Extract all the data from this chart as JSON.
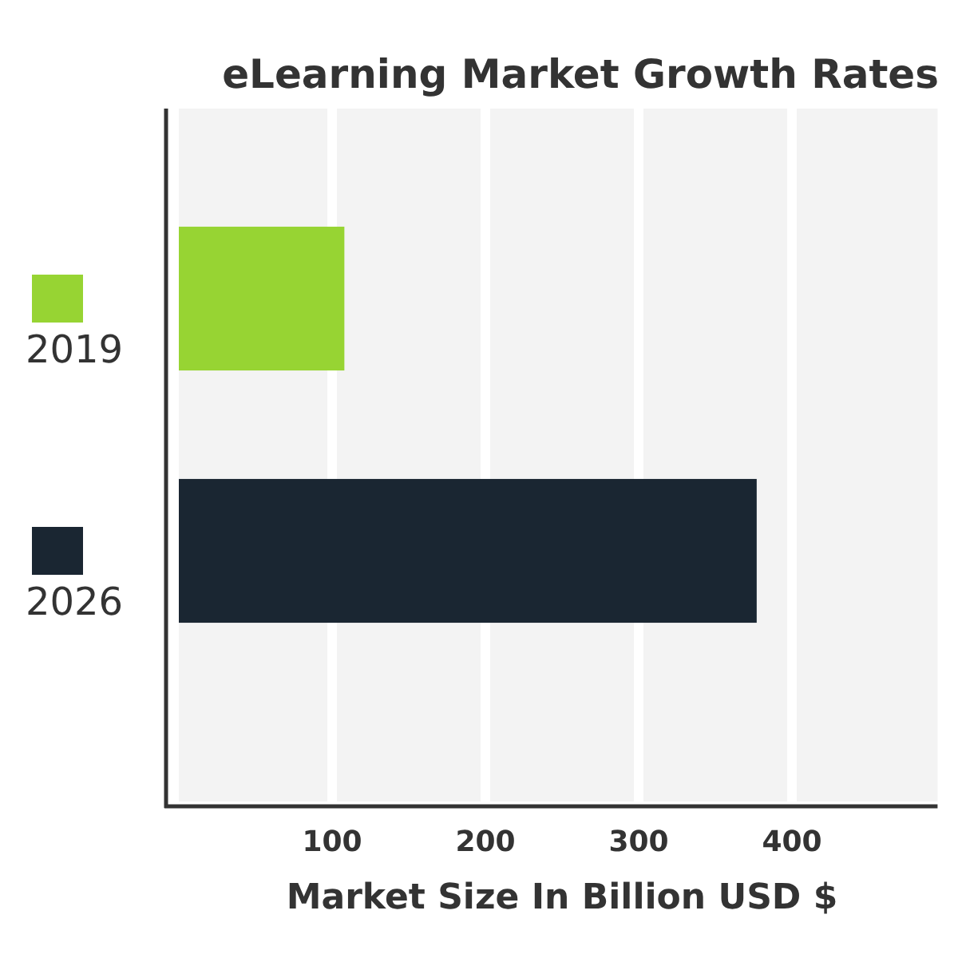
{
  "chart_data": {
    "type": "bar",
    "orientation": "horizontal",
    "title": "eLearning Market Growth Rates",
    "xlabel": "Market Size In Billion USD $",
    "categories": [
      "2019",
      "2026"
    ],
    "values": [
      108,
      377
    ],
    "colors": [
      "#97d433",
      "#1a2632"
    ],
    "xlim": [
      0,
      495
    ],
    "xticks": [
      100,
      200,
      300,
      400
    ],
    "grid": "x"
  }
}
